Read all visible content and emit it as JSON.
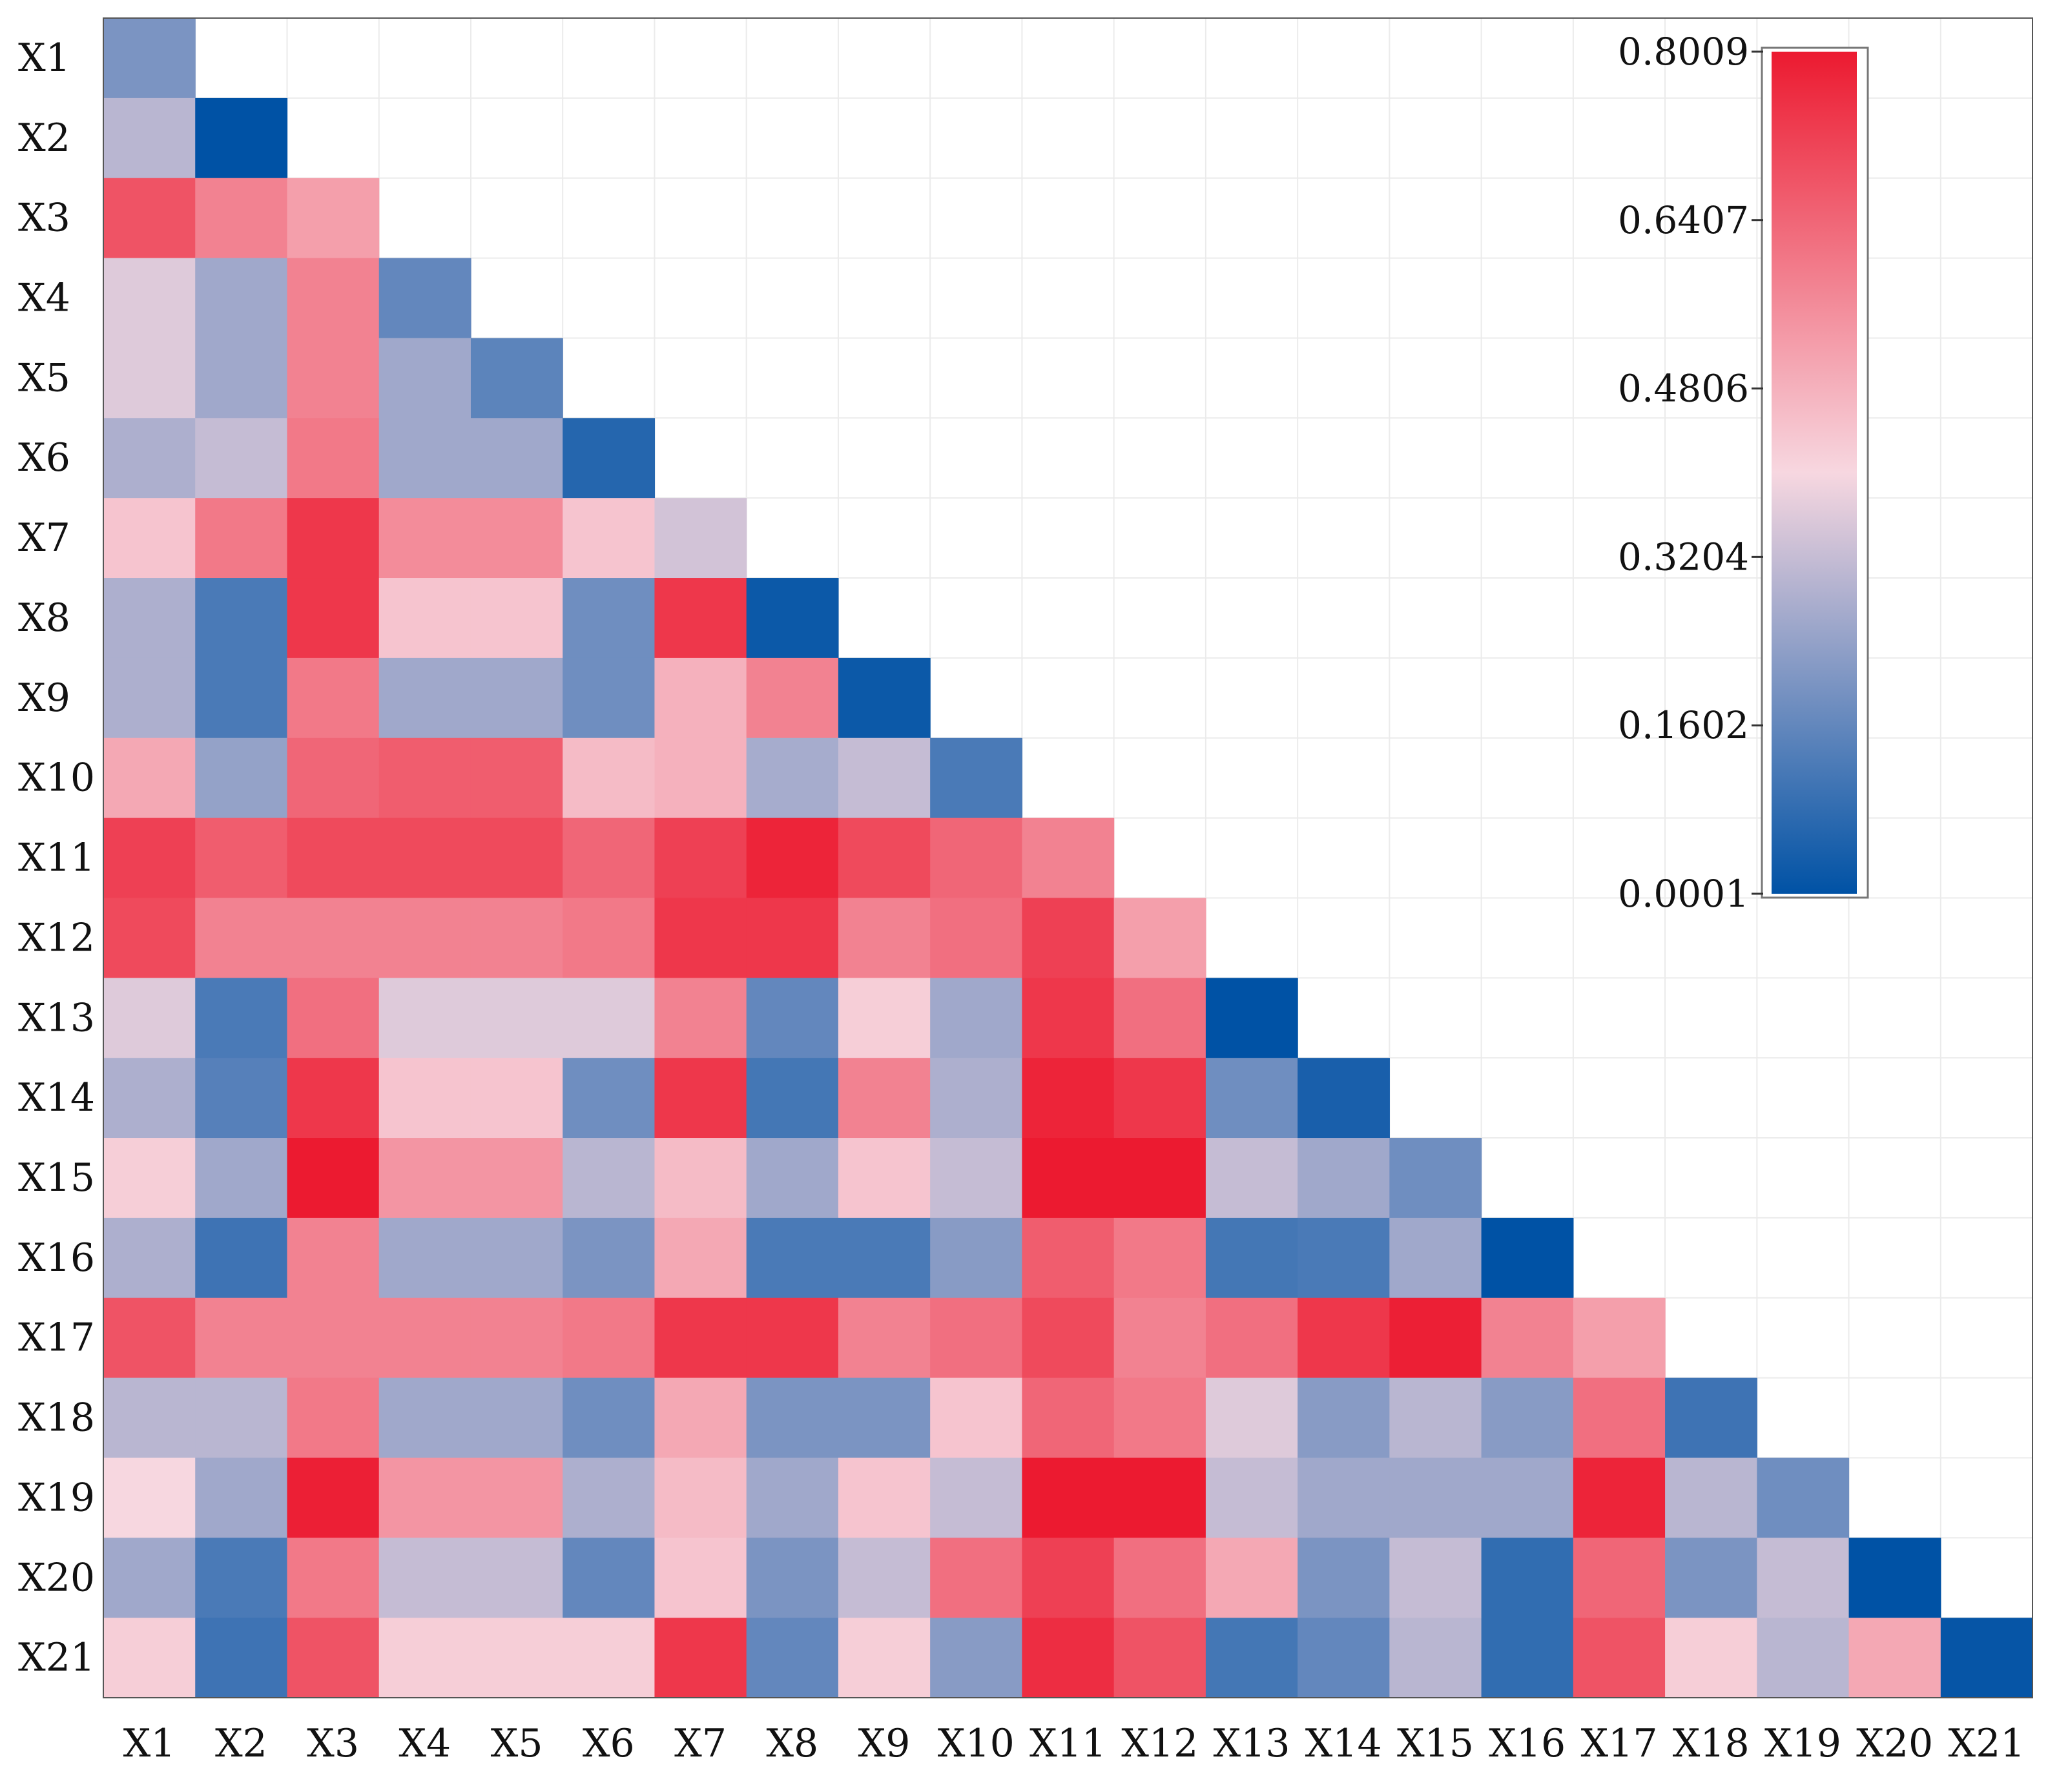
{
  "chart_data": {
    "type": "heatmap",
    "subtype": "lower-triangular-correlation",
    "title": "",
    "xlabel": "",
    "ylabel": "",
    "variables": [
      "X1",
      "X2",
      "X3",
      "X4",
      "X5",
      "X6",
      "X7",
      "X8",
      "X9",
      "X10",
      "X11",
      "X12",
      "X13",
      "X14",
      "X15",
      "X16",
      "X17",
      "X18",
      "X19",
      "X20",
      "X21"
    ],
    "matrix": [
      [
        0.2
      ],
      [
        0.3,
        0.0
      ],
      [
        0.68,
        0.58,
        0.52
      ],
      [
        0.36,
        0.26,
        0.58,
        0.16
      ],
      [
        0.36,
        0.26,
        0.58,
        0.26,
        0.15
      ],
      [
        0.28,
        0.32,
        0.6,
        0.26,
        0.26,
        0.06
      ],
      [
        0.44,
        0.6,
        0.74,
        0.56,
        0.56,
        0.44,
        0.34
      ],
      [
        0.28,
        0.12,
        0.74,
        0.44,
        0.44,
        0.18,
        0.74,
        0.02
      ],
      [
        0.28,
        0.12,
        0.6,
        0.26,
        0.26,
        0.18,
        0.48,
        0.58,
        0.02
      ],
      [
        0.5,
        0.24,
        0.64,
        0.66,
        0.66,
        0.46,
        0.48,
        0.27,
        0.32,
        0.12
      ],
      [
        0.72,
        0.66,
        0.7,
        0.7,
        0.7,
        0.64,
        0.72,
        0.78,
        0.7,
        0.64,
        0.58
      ],
      [
        0.7,
        0.58,
        0.58,
        0.58,
        0.58,
        0.6,
        0.74,
        0.74,
        0.58,
        0.62,
        0.72,
        0.52
      ],
      [
        0.36,
        0.12,
        0.62,
        0.36,
        0.36,
        0.36,
        0.58,
        0.16,
        0.42,
        0.26,
        0.74,
        0.62,
        0.0
      ],
      [
        0.28,
        0.14,
        0.74,
        0.44,
        0.44,
        0.18,
        0.74,
        0.11,
        0.58,
        0.28,
        0.78,
        0.74,
        0.18,
        0.04
      ],
      [
        0.42,
        0.26,
        0.8,
        0.54,
        0.54,
        0.3,
        0.46,
        0.26,
        0.44,
        0.32,
        0.8,
        0.8,
        0.32,
        0.26,
        0.18
      ],
      [
        0.28,
        0.1,
        0.58,
        0.26,
        0.26,
        0.2,
        0.5,
        0.12,
        0.12,
        0.22,
        0.66,
        0.6,
        0.11,
        0.12,
        0.26,
        0.0
      ],
      [
        0.68,
        0.58,
        0.58,
        0.58,
        0.58,
        0.6,
        0.74,
        0.74,
        0.58,
        0.62,
        0.7,
        0.58,
        0.62,
        0.74,
        0.79,
        0.58,
        0.52
      ],
      [
        0.3,
        0.3,
        0.6,
        0.26,
        0.26,
        0.18,
        0.5,
        0.2,
        0.2,
        0.44,
        0.64,
        0.6,
        0.36,
        0.22,
        0.3,
        0.22,
        0.62,
        0.1
      ],
      [
        0.4,
        0.26,
        0.79,
        0.54,
        0.54,
        0.28,
        0.46,
        0.26,
        0.44,
        0.32,
        0.8,
        0.8,
        0.32,
        0.26,
        0.26,
        0.26,
        0.78,
        0.3,
        0.18
      ],
      [
        0.26,
        0.12,
        0.6,
        0.32,
        0.32,
        0.16,
        0.44,
        0.2,
        0.32,
        0.62,
        0.72,
        0.62,
        0.5,
        0.2,
        0.32,
        0.08,
        0.64,
        0.2,
        0.32,
        0.0
      ],
      [
        0.42,
        0.1,
        0.68,
        0.42,
        0.42,
        0.42,
        0.74,
        0.16,
        0.42,
        0.22,
        0.76,
        0.68,
        0.11,
        0.16,
        0.3,
        0.08,
        0.68,
        0.42,
        0.3,
        0.5,
        0.01
      ]
    ],
    "colorbar": {
      "min": 0.0001,
      "max": 0.8009,
      "ticks": [
        "0.0001",
        "0.1602",
        "0.3204",
        "0.4806",
        "0.6407",
        "0.8009"
      ],
      "colors": [
        "#0052a5",
        "#f7d7e0",
        "#ec1a30"
      ],
      "position": "top-right"
    },
    "grid": true
  }
}
